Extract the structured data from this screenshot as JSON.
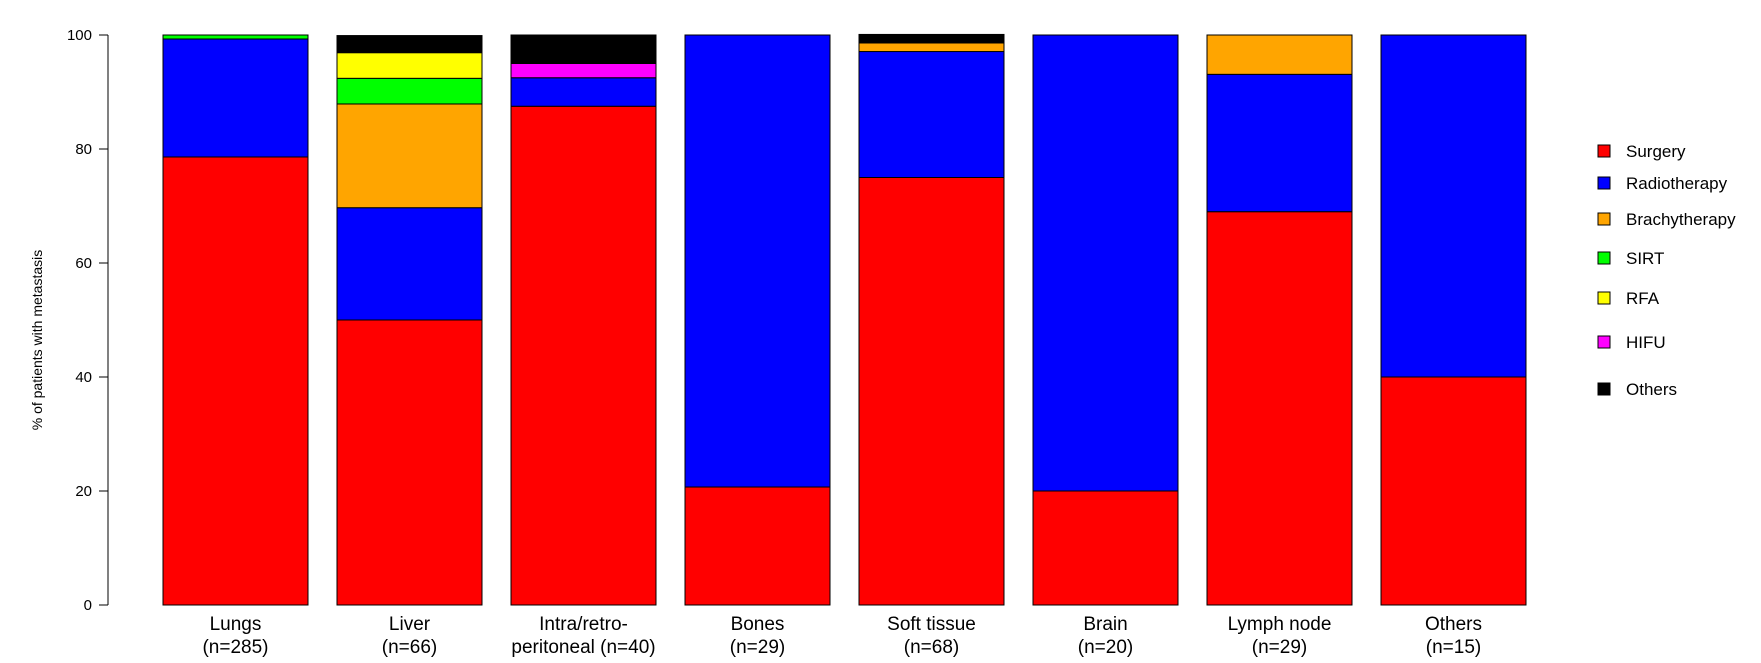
{
  "chart_data": {
    "type": "bar",
    "stacked": true,
    "ylabel": "% of patients with metastasis",
    "ylim": [
      0,
      100
    ],
    "yticks": [
      0,
      20,
      40,
      60,
      80,
      100
    ],
    "grid": false,
    "legend_position": "right",
    "categories": [
      [
        "Lungs",
        "(n=285)"
      ],
      [
        "Liver",
        "(n=66)"
      ],
      [
        "Intra/retro-",
        "peritoneal (n=40)"
      ],
      [
        "Bones",
        "(n=29)"
      ],
      [
        "Soft tissue",
        "(n=68)"
      ],
      [
        "Brain",
        "(n=20)"
      ],
      [
        "Lymph node",
        "(n=29)"
      ],
      [
        "Others",
        "(n=15)"
      ]
    ],
    "series": [
      {
        "name": "Surgery",
        "color": "#ff0000",
        "values": [
          78.6,
          50.0,
          87.5,
          20.7,
          75.0,
          20.0,
          69.0,
          40.0
        ]
      },
      {
        "name": "Radiotherapy",
        "color": "#0000ff",
        "values": [
          20.7,
          19.7,
          5.0,
          79.3,
          22.1,
          80.0,
          24.1,
          60.0
        ]
      },
      {
        "name": "Brachytherapy",
        "color": "#ffa500",
        "values": [
          0,
          18.2,
          0,
          0,
          1.5,
          0,
          6.9,
          0
        ]
      },
      {
        "name": "SIRT",
        "color": "#00ff00",
        "values": [
          0.7,
          4.5,
          0,
          0,
          0,
          0,
          0,
          0
        ]
      },
      {
        "name": "RFA",
        "color": "#ffff00",
        "values": [
          0,
          4.5,
          0,
          0,
          0,
          0,
          0,
          0
        ]
      },
      {
        "name": "HIFU",
        "color": "#ff00ff",
        "values": [
          0,
          0,
          2.5,
          0,
          0,
          0,
          0,
          0
        ]
      },
      {
        "name": "Others",
        "color": "#000000",
        "values": [
          0,
          3.0,
          5.0,
          0,
          1.5,
          0,
          0,
          0
        ]
      }
    ]
  }
}
